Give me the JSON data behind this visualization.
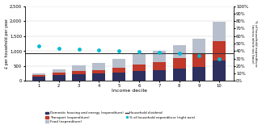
{
  "deciles": [
    1,
    2,
    3,
    4,
    5,
    6,
    7,
    8,
    9,
    10
  ],
  "domestic": [
    150,
    200,
    240,
    250,
    270,
    340,
    370,
    420,
    470,
    680
  ],
  "transport": [
    40,
    70,
    90,
    110,
    160,
    210,
    270,
    350,
    460,
    650
  ],
  "food": [
    70,
    130,
    190,
    250,
    300,
    340,
    360,
    420,
    480,
    650
  ],
  "household_dividend": 940,
  "pct_expenditure": [
    47,
    44,
    42,
    41,
    40,
    39,
    38,
    37,
    34,
    30
  ],
  "ylim_left": [
    0,
    2500
  ],
  "ylim_right": [
    0,
    100
  ],
  "color_domestic": "#2d2f5e",
  "color_transport": "#c0392b",
  "color_food": "#b8bfcc",
  "color_dividend": "#333333",
  "color_pct": "#00bcd4",
  "xlabel": "Income decile",
  "ylabel_left": "£ per household per year",
  "ylabel_right": "% of household expenditure\n(across whole tax base)",
  "bar_width": 0.65,
  "yticks_left": [
    0,
    500,
    1000,
    1500,
    2000,
    2500
  ],
  "ytick_labels_left": [
    "0",
    "500",
    "1,000",
    "1,500",
    "2,000",
    "2,500"
  ],
  "yticks_right": [
    0,
    10,
    20,
    30,
    40,
    50,
    60,
    70,
    80,
    90,
    100
  ],
  "legend_col1": [
    {
      "label": "Domestic housing and energy (expenditure)",
      "color": "#2d2f5e",
      "type": "bar"
    },
    {
      "label": "Food (expenditure)",
      "color": "#b8bfcc",
      "type": "bar"
    },
    {
      "label": "% of household expenditure (right axis)",
      "color": "#00bcd4",
      "type": "dot"
    }
  ],
  "legend_col2": [
    {
      "label": "Transport (expenditure)",
      "color": "#c0392b",
      "type": "bar"
    },
    {
      "label": "Household dividend",
      "color": "#333333",
      "type": "line"
    }
  ]
}
